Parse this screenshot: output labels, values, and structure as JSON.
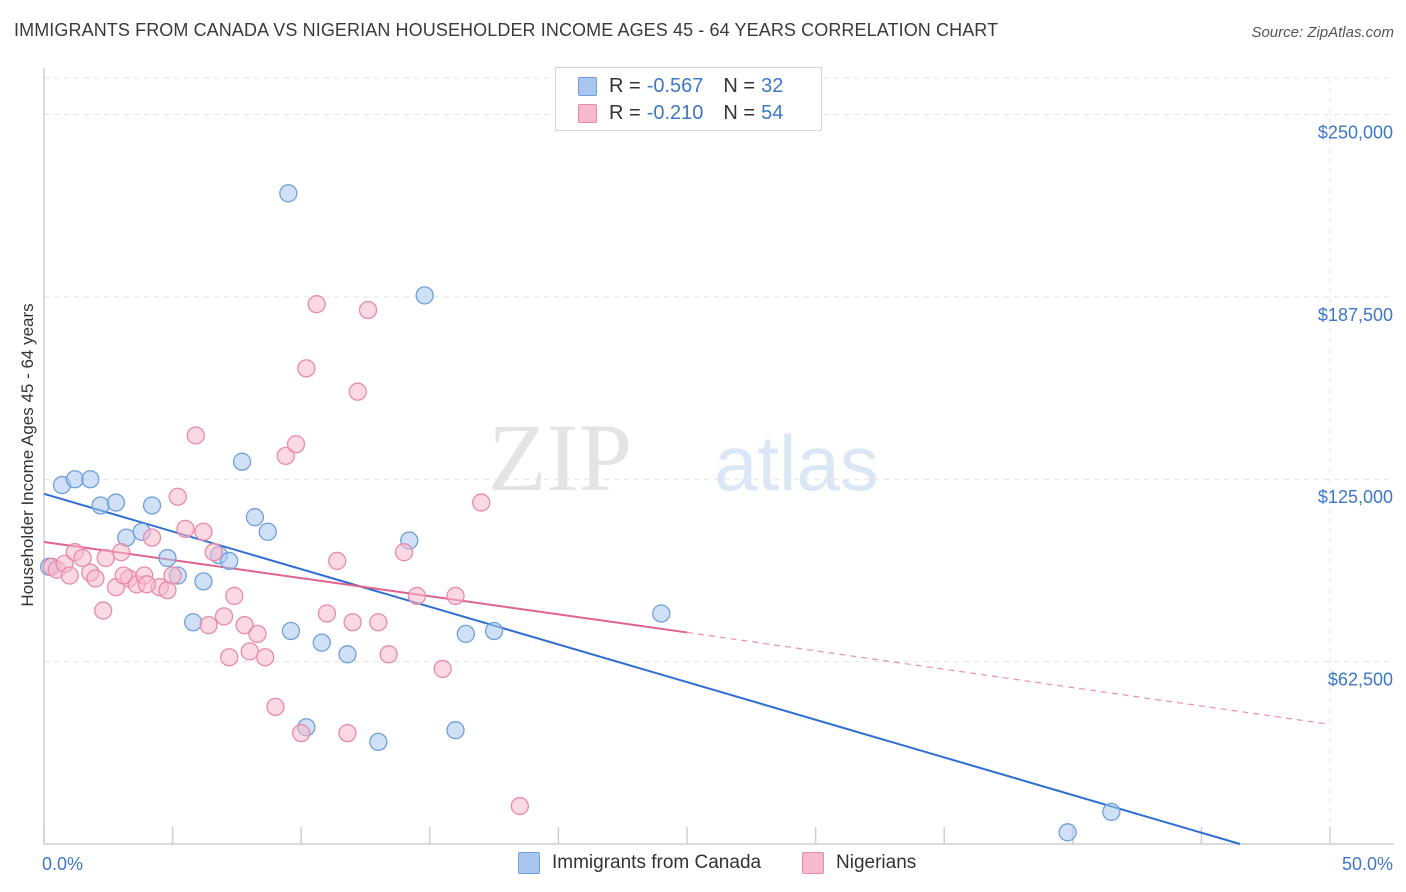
{
  "header": {
    "title": "IMMIGRANTS FROM CANADA VS NIGERIAN HOUSEHOLDER INCOME AGES 45 - 64 YEARS CORRELATION CHART",
    "source": "Source: ZipAtlas.com"
  },
  "watermark": {
    "zip": "ZIP",
    "atlas": "atlas"
  },
  "legend": {
    "rows": [
      {
        "r_label": "R = ",
        "r_value": "-0.567",
        "n_label": "N = ",
        "n_value": "32"
      },
      {
        "r_label": "R = ",
        "r_value": "-0.210",
        "n_label": "N = ",
        "n_value": "54"
      }
    ]
  },
  "colors": {
    "blue_fill": "#a9c6ef",
    "blue_stroke": "#6f9fdc",
    "blue_line": "#2f6fd1",
    "pink_fill": "#f7b9cc",
    "pink_stroke": "#e98aa7",
    "pink_line": "#e0628e",
    "grid": "#e3e3e3",
    "tick_text": "#3d77c8"
  },
  "chart_data": {
    "type": "scatter",
    "title": "IMMIGRANTS FROM CANADA VS NIGERIAN HOUSEHOLDER INCOME AGES 45 - 64 YEARS CORRELATION CHART",
    "xlabel": "",
    "ylabel": "Householder Income Ages 45 - 64 years",
    "xlim": [
      0,
      50
    ],
    "ylim": [
      0,
      262500
    ],
    "x_tick_labels": [
      {
        "value": 0,
        "label": "0.0%"
      },
      {
        "value": 50,
        "label": "50.0%"
      }
    ],
    "y_ticks": [
      {
        "value": 62500,
        "label": "$62,500"
      },
      {
        "value": 125000,
        "label": "$125,000"
      },
      {
        "value": 187500,
        "label": "$187,500"
      },
      {
        "value": 250000,
        "label": "$250,000"
      }
    ],
    "grid": true,
    "legend_placement": "top-center",
    "series": [
      {
        "name": "Immigrants from Canada",
        "color": "blue",
        "points": [
          [
            0.2,
            95000
          ],
          [
            0.7,
            123000
          ],
          [
            1.2,
            125000
          ],
          [
            1.8,
            125000
          ],
          [
            2.2,
            116000
          ],
          [
            2.8,
            117000
          ],
          [
            3.2,
            105000
          ],
          [
            3.8,
            107000
          ],
          [
            4.2,
            116000
          ],
          [
            4.8,
            98000
          ],
          [
            5.2,
            92000
          ],
          [
            5.8,
            76000
          ],
          [
            6.2,
            90000
          ],
          [
            6.8,
            99000
          ],
          [
            7.2,
            97000
          ],
          [
            7.7,
            131000
          ],
          [
            8.2,
            112000
          ],
          [
            8.7,
            107000
          ],
          [
            9.5,
            223000
          ],
          [
            9.6,
            73000
          ],
          [
            10.2,
            40000
          ],
          [
            10.8,
            69000
          ],
          [
            11.8,
            65000
          ],
          [
            13.0,
            35000
          ],
          [
            14.2,
            104000
          ],
          [
            14.8,
            188000
          ],
          [
            16.0,
            39000
          ],
          [
            16.4,
            72000
          ],
          [
            17.5,
            73000
          ],
          [
            24.0,
            79000
          ],
          [
            39.8,
            4000
          ],
          [
            41.5,
            11000
          ]
        ],
        "trend": {
          "x": [
            0,
            46.5
          ],
          "y": [
            120000,
            0
          ],
          "style": "solid"
        }
      },
      {
        "name": "Nigerians",
        "color": "pink",
        "points": [
          [
            0.3,
            95000
          ],
          [
            0.5,
            94000
          ],
          [
            0.8,
            96000
          ],
          [
            1.0,
            92000
          ],
          [
            1.2,
            100000
          ],
          [
            1.5,
            98000
          ],
          [
            1.8,
            93000
          ],
          [
            2.0,
            91000
          ],
          [
            2.3,
            80000
          ],
          [
            2.8,
            88000
          ],
          [
            3.0,
            100000
          ],
          [
            3.3,
            91000
          ],
          [
            3.6,
            89000
          ],
          [
            3.9,
            92000
          ],
          [
            4.2,
            105000
          ],
          [
            4.5,
            88000
          ],
          [
            4.8,
            87000
          ],
          [
            5.2,
            119000
          ],
          [
            5.5,
            108000
          ],
          [
            5.9,
            140000
          ],
          [
            6.2,
            107000
          ],
          [
            6.6,
            100000
          ],
          [
            7.0,
            78000
          ],
          [
            7.4,
            85000
          ],
          [
            7.8,
            75000
          ],
          [
            8.0,
            66000
          ],
          [
            8.3,
            72000
          ],
          [
            8.6,
            64000
          ],
          [
            9.0,
            47000
          ],
          [
            9.4,
            133000
          ],
          [
            9.8,
            137000
          ],
          [
            10.2,
            163000
          ],
          [
            10.6,
            185000
          ],
          [
            11.0,
            79000
          ],
          [
            11.4,
            97000
          ],
          [
            11.8,
            38000
          ],
          [
            12.2,
            155000
          ],
          [
            12.6,
            183000
          ],
          [
            13.0,
            76000
          ],
          [
            13.4,
            65000
          ],
          [
            14.0,
            100000
          ],
          [
            14.5,
            85000
          ],
          [
            15.5,
            60000
          ],
          [
            16.0,
            85000
          ],
          [
            17.0,
            117000
          ],
          [
            18.5,
            13000
          ],
          [
            2.4,
            98000
          ],
          [
            3.1,
            92000
          ],
          [
            4.0,
            89000
          ],
          [
            5.0,
            92000
          ],
          [
            6.4,
            75000
          ],
          [
            7.2,
            64000
          ],
          [
            10.0,
            38000
          ],
          [
            12.0,
            76000
          ]
        ],
        "trend": {
          "x": [
            0,
            25
          ],
          "y": [
            103500,
            72500
          ],
          "style": "solid",
          "extension": {
            "x": [
              25,
              50
            ],
            "y": [
              72500,
              41000
            ],
            "style": "dashed"
          }
        }
      }
    ]
  },
  "bottom_legend": {
    "items": [
      {
        "label": "Immigrants from Canada"
      },
      {
        "label": "Nigerians"
      }
    ]
  }
}
